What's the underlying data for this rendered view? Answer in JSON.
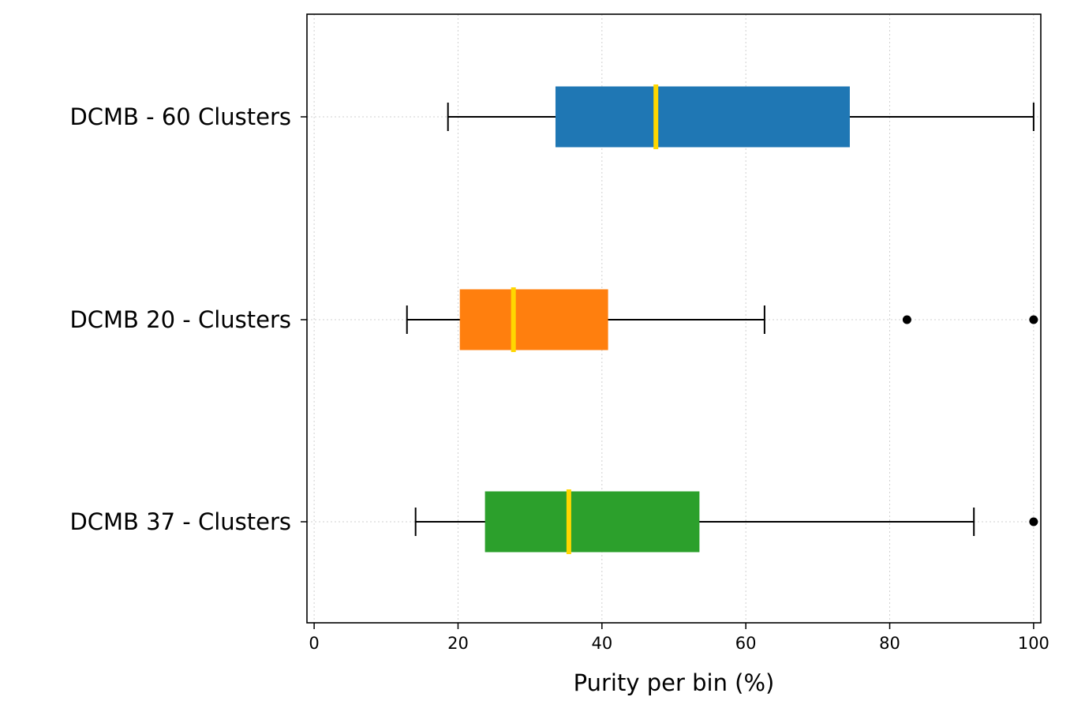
{
  "chart_data": {
    "type": "boxplot",
    "orientation": "horizontal",
    "title": "",
    "xlabel": "Purity per bin (%)",
    "ylabel": "",
    "xlim": [
      -1,
      101
    ],
    "x_ticks": [
      0,
      20,
      40,
      60,
      80,
      100
    ],
    "grid": true,
    "grid_style": "dotted",
    "median_color": "#FFD700",
    "series": [
      {
        "name": "DCMB - 60 Clusters",
        "color": "#1f77b4",
        "whisker_low": 18.6,
        "q1": 33.6,
        "median": 47.5,
        "q3": 74.4,
        "whisker_high": 100,
        "outliers": []
      },
      {
        "name": "DCMB 20 - Clusters",
        "color": "#ff7f0e",
        "whisker_low": 12.9,
        "q1": 20.3,
        "median": 27.7,
        "q3": 40.8,
        "whisker_high": 62.6,
        "outliers": [
          82.4,
          100
        ]
      },
      {
        "name": "DCMB 37 - Clusters",
        "color": "#2ca02c",
        "whisker_low": 14.1,
        "q1": 23.8,
        "median": 35.4,
        "q3": 53.5,
        "whisker_high": 91.7,
        "outliers": [
          100
        ]
      }
    ]
  }
}
